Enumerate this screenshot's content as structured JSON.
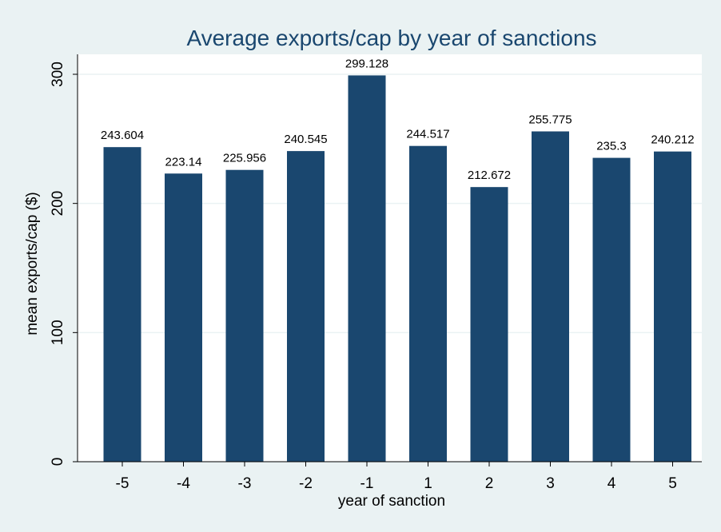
{
  "colors": {
    "page_background": "#eaf2f3",
    "plot_background": "#ffffff",
    "bar": "#1a476f",
    "title": "#1a476f",
    "gridline": "#eaf2f3",
    "axis": "#000000"
  },
  "chart_data": {
    "type": "bar",
    "title": "Average exports/cap by year of sanctions",
    "xlabel": "year of sanction",
    "ylabel": "mean exports/cap ($)",
    "categories": [
      "-5",
      "-4",
      "-3",
      "-2",
      "-1",
      "1",
      "2",
      "3",
      "4",
      "5"
    ],
    "values": [
      243.604,
      223.14,
      225.956,
      240.545,
      299.128,
      244.517,
      212.672,
      255.775,
      235.3,
      240.212
    ],
    "value_labels": [
      "243.604",
      "223.14",
      "225.956",
      "240.545",
      "299.128",
      "244.517",
      "212.672",
      "255.775",
      "235.3",
      "240.212"
    ],
    "ylim": [
      0,
      300
    ],
    "yticks": [
      0,
      100,
      200,
      300
    ],
    "ytick_labels": [
      "0",
      "100",
      "200",
      "300"
    ],
    "grid": true,
    "legend": "none"
  }
}
